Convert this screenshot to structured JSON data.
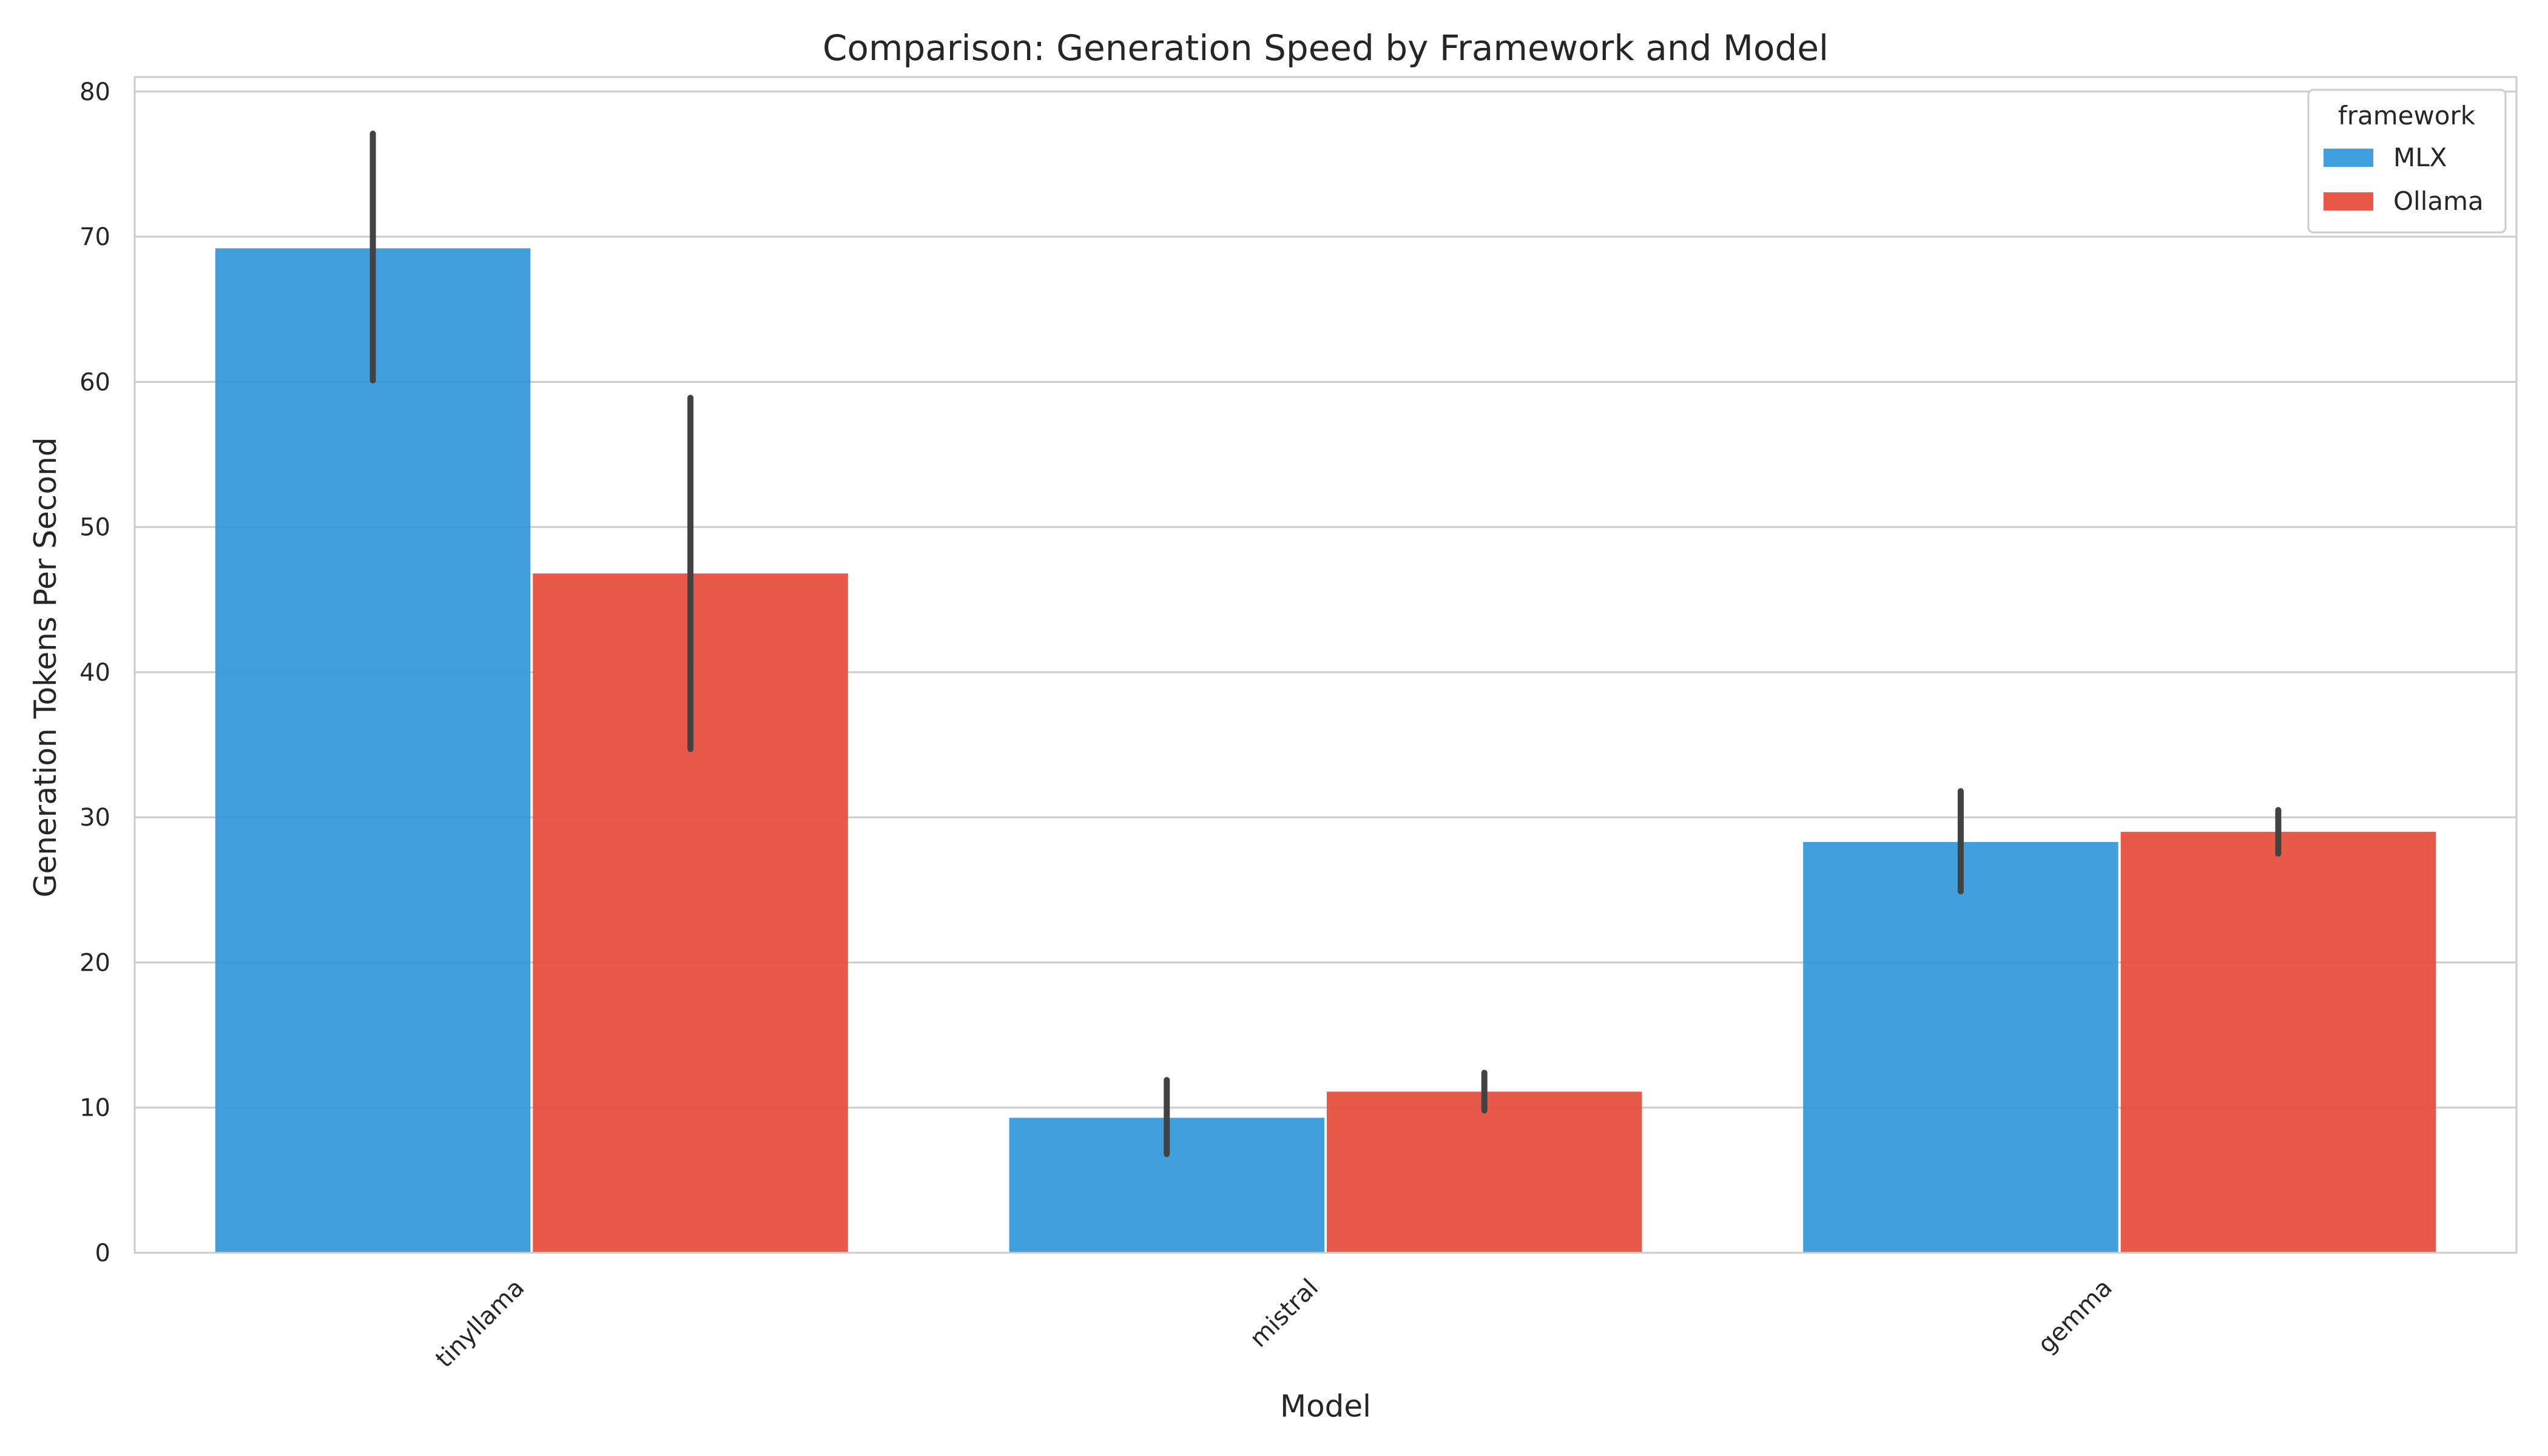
{
  "chart_data": {
    "type": "bar",
    "title": "Comparison: Generation Speed by Framework and Model",
    "xlabel": "Model",
    "ylabel": "Generation Tokens Per Second",
    "categories": [
      "tinyllama",
      "mistral",
      "gemma"
    ],
    "series": [
      {
        "name": "MLX",
        "color": "#3498db",
        "values": [
          69.2,
          9.3,
          28.3
        ],
        "error_low": [
          60.1,
          6.8,
          24.9
        ],
        "error_high": [
          77.1,
          11.9,
          31.8
        ]
      },
      {
        "name": "Ollama",
        "color": "#e74c3c",
        "values": [
          46.8,
          11.1,
          29.0
        ],
        "error_low": [
          34.7,
          9.8,
          27.5
        ],
        "error_high": [
          58.9,
          12.4,
          30.5
        ]
      }
    ],
    "ylim": [
      0,
      81
    ],
    "yticks": [
      0,
      10,
      20,
      30,
      40,
      50,
      60,
      70,
      80
    ],
    "grid": true,
    "legend": {
      "title": "framework",
      "position": "top-right"
    }
  }
}
